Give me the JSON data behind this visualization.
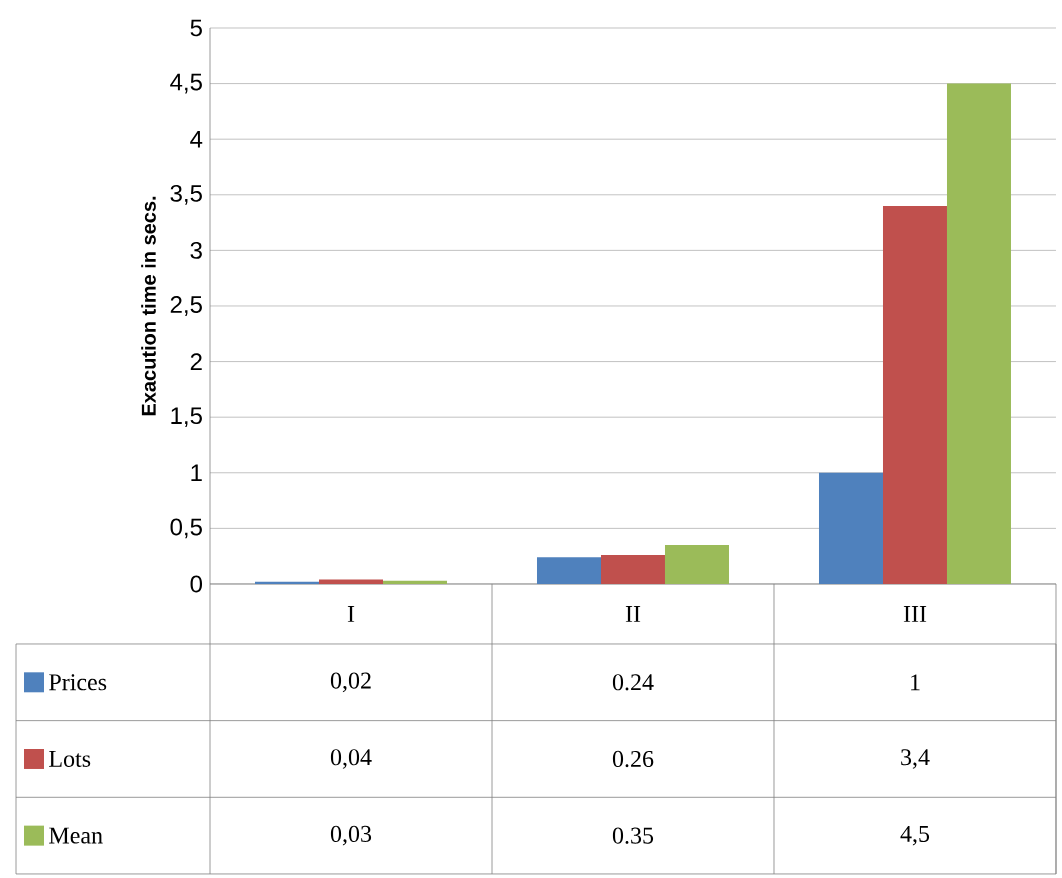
{
  "chart_data": {
    "type": "bar",
    "ylabel": "Exacution time in secs.",
    "categories": [
      "I",
      "II",
      "III"
    ],
    "series": [
      {
        "name": "Prices",
        "color": "#4f81bd",
        "values": [
          0.02,
          0.24,
          1
        ],
        "value_labels": [
          "0,02",
          "0.24",
          "1"
        ]
      },
      {
        "name": "Lots",
        "color": "#c0504d",
        "values": [
          0.04,
          0.26,
          3.4
        ],
        "value_labels": [
          "0,04",
          "0.26",
          "3,4"
        ]
      },
      {
        "name": "Mean",
        "color": "#9bbb59",
        "values": [
          0.03,
          0.35,
          4.5
        ],
        "value_labels": [
          "0,03",
          "0.35",
          "4,5"
        ]
      }
    ],
    "ylim": [
      0,
      5
    ],
    "yticks": [
      0,
      {
        "value": 0.5,
        "label": "0,5"
      },
      1,
      {
        "value": 1.5,
        "label": "1,5"
      },
      2,
      {
        "value": 2.5,
        "label": "2,5"
      },
      3,
      {
        "value": 3.5,
        "label": "3,5"
      },
      4,
      {
        "value": 4.5,
        "label": "4,5"
      },
      5
    ],
    "grid": "y",
    "legend": "bottom"
  }
}
